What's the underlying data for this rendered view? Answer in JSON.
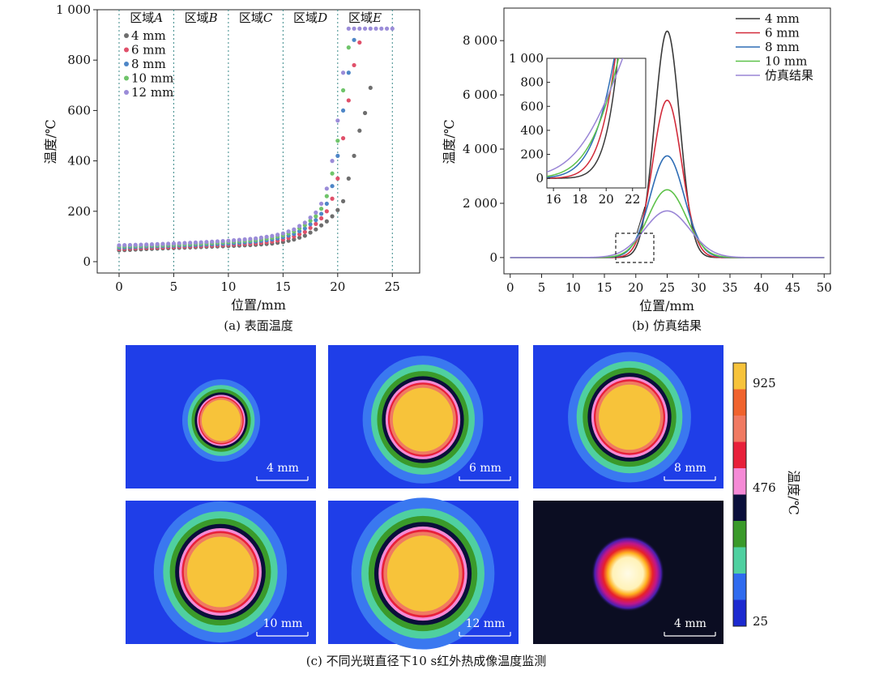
{
  "chart_data": [
    {
      "id": "a",
      "type": "scatter",
      "caption": "(a) 表面温度",
      "xlabel": "位置/mm",
      "ylabel": "温度/℃",
      "xlim": [
        -2,
        27.5
      ],
      "ylim": [
        -45,
        1000
      ],
      "xticks": [
        0,
        5,
        10,
        15,
        20,
        25
      ],
      "xtick_labels": [
        "0",
        "5",
        "10",
        "15",
        "20",
        "25"
      ],
      "yticks": [
        0,
        200,
        400,
        600,
        800,
        1000
      ],
      "ytick_labels": [
        "0",
        "200",
        "400",
        "600",
        "800",
        "1 000"
      ],
      "zone_lines": [
        0,
        5,
        10,
        15,
        20,
        25
      ],
      "zones": [
        {
          "prefix": "区域",
          "letter": "A",
          "x": 2.5
        },
        {
          "prefix": "区域",
          "letter": "B",
          "x": 7.5
        },
        {
          "prefix": "区域",
          "letter": "C",
          "x": 12.5
        },
        {
          "prefix": "区域",
          "letter": "D",
          "x": 17.5
        },
        {
          "prefix": "区域",
          "letter": "E",
          "x": 22.5
        }
      ],
      "series": [
        {
          "name": "4 mm",
          "color": "#6e6e6e",
          "x": [
            0,
            2.5,
            5,
            7.5,
            10,
            12.5,
            14,
            15,
            16,
            17,
            18,
            19,
            19.5,
            20,
            20.5,
            21,
            21.5,
            22,
            22.5,
            23
          ],
          "y": [
            45,
            50,
            54,
            58,
            62,
            67,
            72,
            78,
            88,
            103,
            128,
            160,
            180,
            205,
            240,
            330,
            420,
            520,
            590,
            690
          ]
        },
        {
          "name": "6 mm",
          "color": "#e0506a",
          "x": [
            0,
            2.5,
            5,
            7.5,
            10,
            12.5,
            14,
            15,
            16,
            17,
            18,
            18.5,
            19,
            19.5,
            20,
            20.5,
            21,
            21.5,
            22
          ],
          "y": [
            50,
            55,
            58,
            62,
            67,
            73,
            80,
            88,
            100,
            118,
            150,
            172,
            200,
            250,
            330,
            490,
            640,
            780,
            870
          ]
        },
        {
          "name": "8 mm",
          "color": "#4e86c7",
          "x": [
            0,
            2.5,
            5,
            7.5,
            10,
            12.5,
            14,
            15,
            16,
            17,
            18,
            18.5,
            19,
            19.5,
            20,
            20.5,
            21,
            21.5
          ],
          "y": [
            55,
            60,
            63,
            67,
            72,
            80,
            88,
            97,
            110,
            132,
            165,
            190,
            230,
            300,
            420,
            600,
            750,
            880
          ]
        },
        {
          "name": "10 mm",
          "color": "#6fc46a",
          "x": [
            0,
            2.5,
            5,
            7.5,
            10,
            12.5,
            14,
            15,
            16,
            17,
            18,
            18.5,
            19,
            19.5,
            20,
            20.5,
            21
          ],
          "y": [
            60,
            64,
            67,
            72,
            78,
            86,
            95,
            105,
            120,
            145,
            180,
            210,
            260,
            350,
            480,
            680,
            850
          ]
        },
        {
          "name": "12 mm",
          "color": "#9b8cd8",
          "x": [
            0,
            2.5,
            5,
            7.5,
            10,
            12.5,
            14,
            15,
            16,
            17,
            18,
            18.5,
            19,
            19.5,
            20,
            20.5,
            21,
            22,
            23,
            24,
            25
          ],
          "y": [
            65,
            68,
            72,
            77,
            83,
            92,
            102,
            112,
            128,
            155,
            195,
            230,
            290,
            400,
            560,
            750,
            925,
            925,
            925,
            925,
            925
          ]
        }
      ]
    },
    {
      "id": "b",
      "type": "line",
      "caption": "(b) 仿真结果",
      "xlabel": "位置/mm",
      "ylabel": "温度/℃",
      "xlim": [
        -1,
        51
      ],
      "ylim": [
        -600,
        9200
      ],
      "xticks": [
        0,
        5,
        10,
        15,
        20,
        25,
        30,
        35,
        40,
        45,
        50
      ],
      "xtick_labels": [
        "0",
        "5",
        "10",
        "15",
        "20",
        "25",
        "30",
        "35",
        "40",
        "45",
        "50"
      ],
      "yticks": [
        0,
        2000,
        4000,
        6000,
        8000
      ],
      "ytick_labels": [
        "0",
        "2 000",
        "4 000",
        "6 000",
        "8 000"
      ],
      "series": [
        {
          "name": "4 mm",
          "color": "#3a3a3a",
          "peak": 8350,
          "center": 25,
          "sigma": 2.0
        },
        {
          "name": "6 mm",
          "color": "#d22b3a",
          "peak": 5800,
          "center": 25,
          "sigma": 2.3
        },
        {
          "name": "8 mm",
          "color": "#2e6db5",
          "peak": 3750,
          "center": 25,
          "sigma": 2.7
        },
        {
          "name": "10 mm",
          "color": "#5ec24a",
          "peak": 2500,
          "center": 25,
          "sigma": 3.0
        },
        {
          "name": "仿真结果",
          "color": "#9a86d6",
          "peak": 1720,
          "center": 25,
          "sigma": 3.6
        }
      ],
      "inset": {
        "xlim": [
          15.5,
          23
        ],
        "ylim": [
          -80,
          1000
        ],
        "xticks": [
          16,
          18,
          20,
          22
        ],
        "xtick_labels": [
          "16",
          "18",
          "20",
          "22"
        ],
        "yticks": [
          0,
          200,
          400,
          600,
          800,
          1000
        ],
        "ytick_labels": [
          "0",
          "200",
          "400",
          "600",
          "800",
          "1 000"
        ]
      }
    }
  ],
  "thermal": {
    "caption": "(c) 不同光斑直径下10 s红外热成像温度监测",
    "panels": [
      {
        "label": "4 mm",
        "kind": "contour"
      },
      {
        "label": "6 mm",
        "kind": "contour"
      },
      {
        "label": "8 mm",
        "kind": "contour"
      },
      {
        "label": "10 mm",
        "kind": "contour"
      },
      {
        "label": "12 mm",
        "kind": "contour"
      },
      {
        "label": "4 mm",
        "kind": "raw"
      }
    ],
    "colorbar": {
      "title": "温度/℃",
      "ticks": [
        "925",
        "476",
        "25"
      ],
      "colors": [
        "#f7c33a",
        "#f0632d",
        "#f07a62",
        "#e8203a",
        "#f58ad6",
        "#0a0f3a",
        "#3a9a2a",
        "#4fd0a0",
        "#2f6bef",
        "#1c2ad0"
      ]
    }
  }
}
